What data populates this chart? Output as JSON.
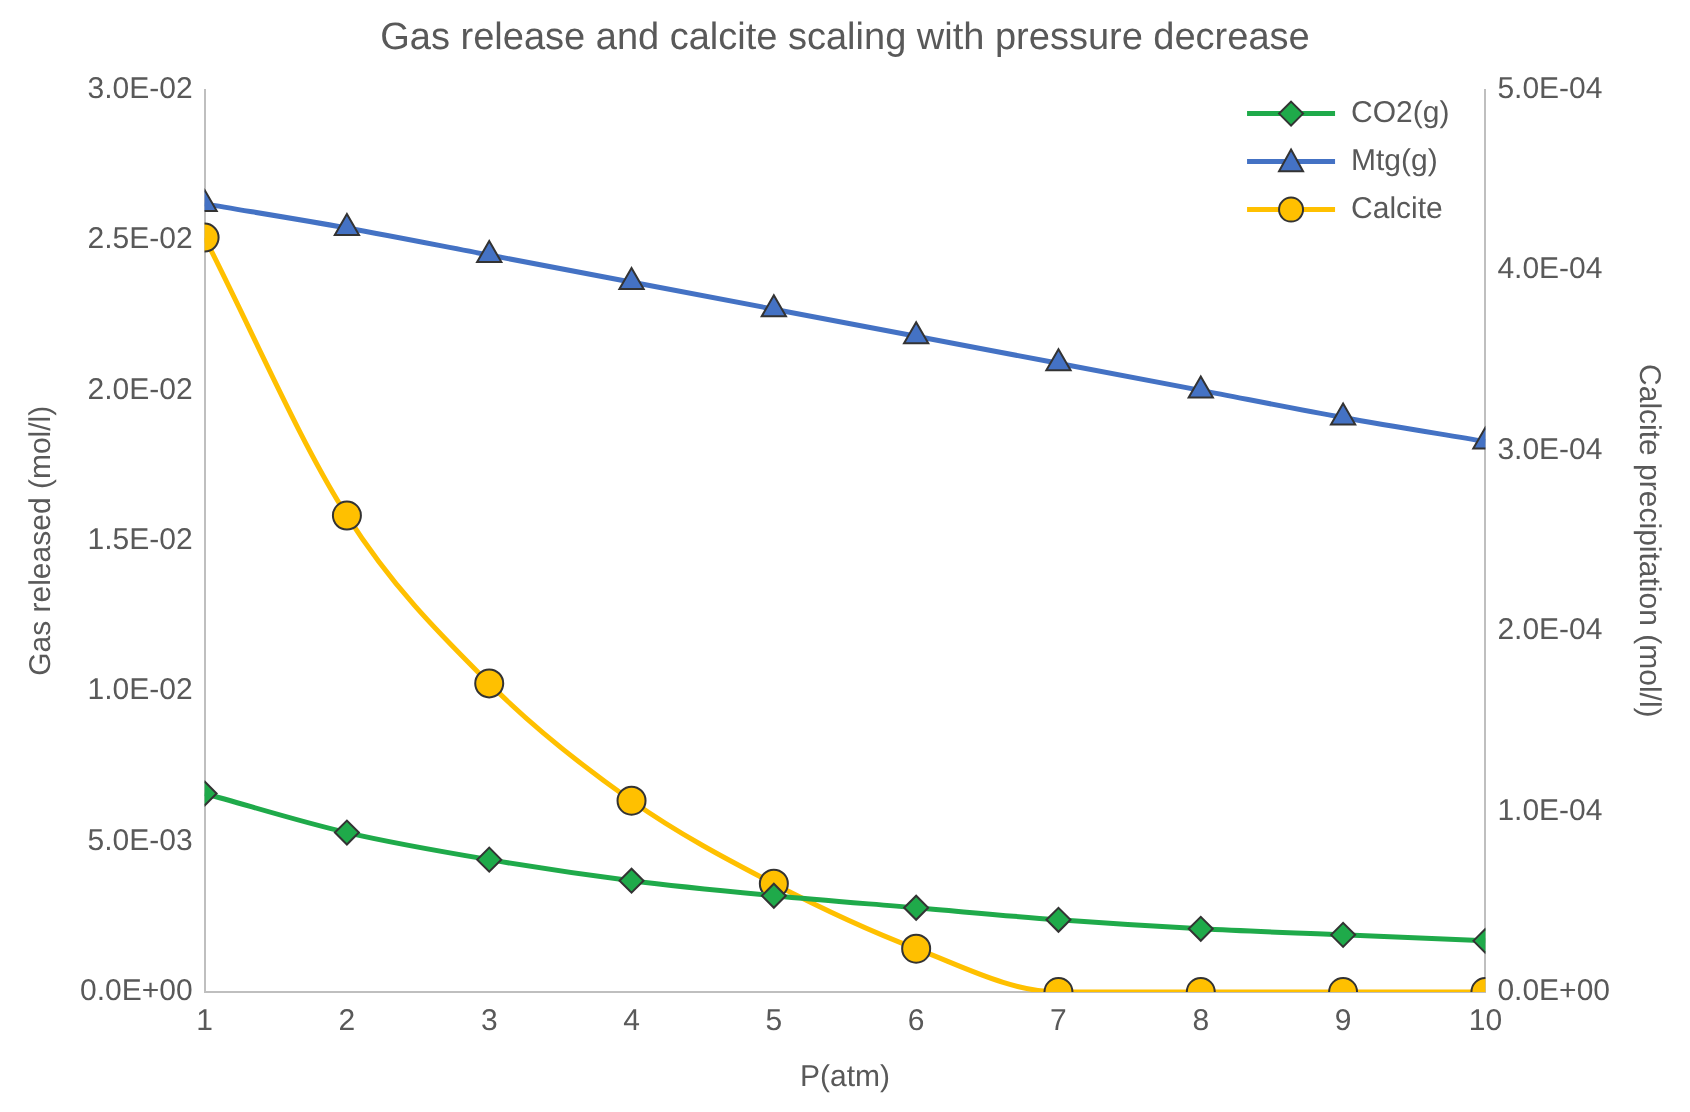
{
  "chart_data": {
    "type": "line",
    "title": "Gas release and calcite scaling with pressure decrease",
    "xlabel": "P(atm)",
    "ylabel": "Gas released (mol/l)",
    "y2label": "Calcite precipitation (mol/l)",
    "x": [
      1,
      2,
      3,
      4,
      5,
      6,
      7,
      8,
      9,
      10
    ],
    "series": [
      {
        "name": "CO2(g)",
        "color": "#1faa4a",
        "marker": "diamond",
        "values": [
          0.0066,
          0.0053,
          0.0044,
          0.0037,
          0.0032,
          0.0028,
          0.0024,
          0.0021,
          0.0019,
          0.0017
        ]
      },
      {
        "name": "Mtg(g)",
        "color": "#4472c4",
        "marker": "triangle",
        "values": [
          0.0262,
          0.0254,
          0.0245,
          0.0236,
          0.0227,
          0.0218,
          0.0209,
          0.02,
          0.0191,
          0.0183
        ]
      },
      {
        "name": "Calcite",
        "color": "#ffc000",
        "marker": "circle",
        "axis": "y2",
        "values": [
          0.000418,
          0.000264,
          0.000171,
          0.000106,
          6e-05,
          2.4e-05,
          0,
          0,
          0,
          0
        ]
      }
    ],
    "xlim": [
      1,
      10
    ],
    "xticks": [
      1,
      2,
      3,
      4,
      5,
      6,
      7,
      8,
      9,
      10
    ],
    "ylim": [
      0,
      0.03
    ],
    "yticks": [
      {
        "value": 0,
        "label": "0.0E+00"
      },
      {
        "value": 0.005,
        "label": "5.0E-03"
      },
      {
        "value": 0.01,
        "label": "1.0E-02"
      },
      {
        "value": 0.015,
        "label": "1.5E-02"
      },
      {
        "value": 0.02,
        "label": "2.0E-02"
      },
      {
        "value": 0.025,
        "label": "2.5E-02"
      },
      {
        "value": 0.03,
        "label": "3.0E-02"
      }
    ],
    "y2lim": [
      0,
      0.0005
    ],
    "y2ticks": [
      {
        "value": 0,
        "label": "0.0E+00"
      },
      {
        "value": 0.0001,
        "label": "1.0E-04"
      },
      {
        "value": 0.0002,
        "label": "2.0E-04"
      },
      {
        "value": 0.0003,
        "label": "3.0E-04"
      },
      {
        "value": 0.0004,
        "label": "4.0E-04"
      },
      {
        "value": 0.0005,
        "label": "5.0E-04"
      }
    ],
    "grid": false,
    "legend": "top right",
    "line_style": "solid"
  }
}
